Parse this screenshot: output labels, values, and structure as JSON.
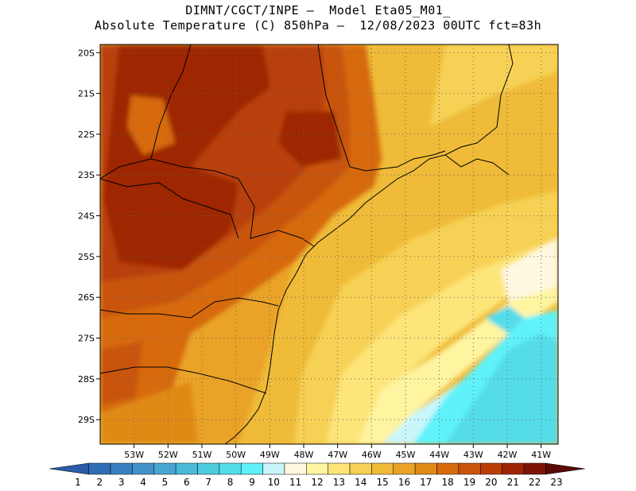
{
  "header": {
    "line1": "DIMNT/CGCT/INPE –  Model Eta05_M01_",
    "line2": "Absolute Temperature (C) 850hPa –  12/08/2023 00UTC fct=83h"
  },
  "map": {
    "lon_range": [
      -54.0,
      -40.5
    ],
    "lat_range": [
      -29.6,
      -19.8
    ],
    "lat_ticks": [
      {
        "value": -20,
        "label": "20S"
      },
      {
        "value": -21,
        "label": "21S"
      },
      {
        "value": -22,
        "label": "22S"
      },
      {
        "value": -23,
        "label": "23S"
      },
      {
        "value": -24,
        "label": "24S"
      },
      {
        "value": -25,
        "label": "25S"
      },
      {
        "value": -26,
        "label": "26S"
      },
      {
        "value": -27,
        "label": "27S"
      },
      {
        "value": -28,
        "label": "28S"
      },
      {
        "value": -29,
        "label": "29S"
      }
    ],
    "lon_ticks": [
      {
        "value": -53,
        "label": "53W"
      },
      {
        "value": -52,
        "label": "52W"
      },
      {
        "value": -51,
        "label": "51W"
      },
      {
        "value": -50,
        "label": "50W"
      },
      {
        "value": -49,
        "label": "49W"
      },
      {
        "value": -48,
        "label": "48W"
      },
      {
        "value": -47,
        "label": "47W"
      },
      {
        "value": -46,
        "label": "46W"
      },
      {
        "value": -45,
        "label": "45W"
      },
      {
        "value": -44,
        "label": "44W"
      },
      {
        "value": -43,
        "label": "43W"
      },
      {
        "value": -42,
        "label": "42W"
      },
      {
        "value": -41,
        "label": "41W"
      }
    ],
    "gridlines": "dotted"
  },
  "colorbar": {
    "labels": [
      "1",
      "2",
      "3",
      "4",
      "5",
      "6",
      "7",
      "8",
      "9",
      "10",
      "11",
      "12",
      "13",
      "14",
      "15",
      "16",
      "17",
      "18",
      "19",
      "20",
      "21",
      "22",
      "23"
    ],
    "colors": [
      "#2b5ba8",
      "#2f6db5",
      "#3a80c0",
      "#4292c8",
      "#48a6d3",
      "#4bbad9",
      "#4ecce0",
      "#55dcea",
      "#5ff2fa",
      "#c8f6fb",
      "#fff8e0",
      "#fff4a0",
      "#fde57a",
      "#f7d155",
      "#efbb38",
      "#eaa327",
      "#e08a18",
      "#d76b0d",
      "#c9540a",
      "#b93f07",
      "#9e2606",
      "#7d1506",
      "#5a0a06"
    ]
  }
}
